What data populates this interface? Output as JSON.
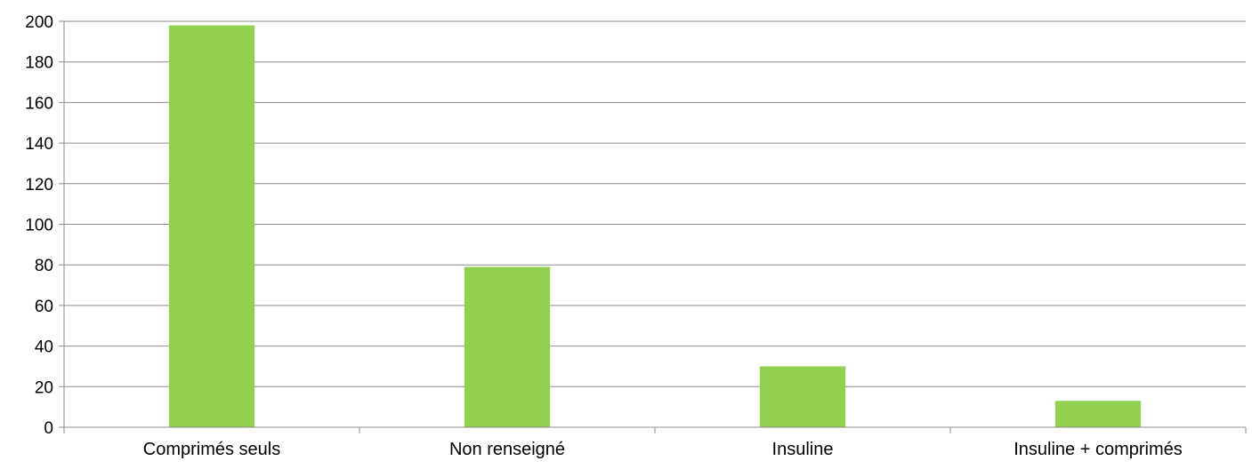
{
  "chart_data": {
    "type": "bar",
    "title": "",
    "xlabel": "",
    "ylabel": "",
    "categories": [
      "Comprimés seuls",
      "Non renseigné",
      "Insuline",
      "Insuline + comprimés"
    ],
    "values": [
      198,
      79,
      30,
      13
    ],
    "ylim": [
      0,
      200
    ],
    "yticks": [
      "0",
      "20",
      "40",
      "60",
      "80",
      "100",
      "120",
      "140",
      "160",
      "180",
      "200"
    ],
    "grid": true,
    "legend": "none",
    "bar_color": "#92d050",
    "grid_color": "#8c8c8c"
  }
}
